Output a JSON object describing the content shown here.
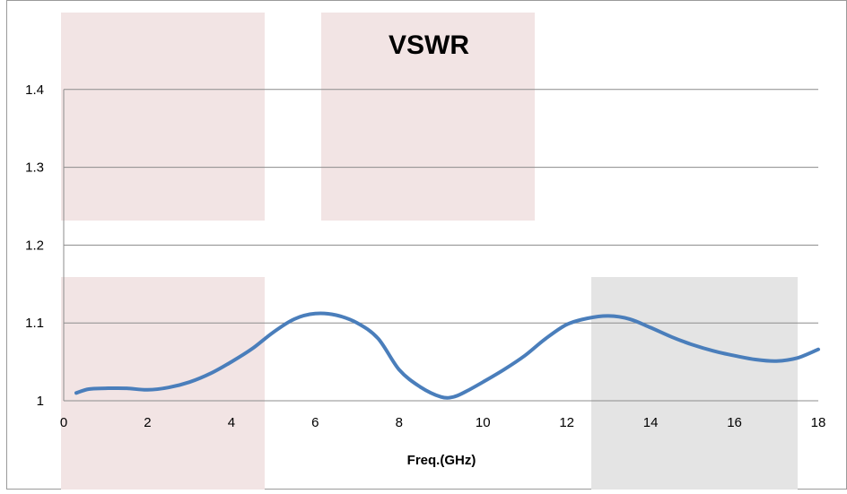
{
  "chart_data": {
    "type": "line",
    "title": "VSWR",
    "xlabel": "Freq.(GHz)",
    "ylabel": "",
    "xlim": [
      0,
      18
    ],
    "ylim": [
      1.0,
      1.5
    ],
    "x_ticks": [
      "0",
      "2",
      "4",
      "6",
      "8",
      "10",
      "12",
      "14",
      "16",
      "18"
    ],
    "y_ticks": [
      "1",
      "1.1",
      "1.2",
      "1.3",
      "1.4"
    ],
    "grid": "horizontal",
    "legend": "none",
    "series_color": "#4a7ebb",
    "shade_color": "#f2e4e4",
    "shade_gray_color": "#e4e4e4",
    "series": [
      {
        "x": [
          0.3,
          0.6,
          1.0,
          1.5,
          2.0,
          2.5,
          3.0,
          3.5,
          4.0,
          4.5,
          5.0,
          5.5,
          6.0,
          6.5,
          7.0,
          7.5,
          8.0,
          8.5,
          9.0,
          9.3,
          9.6,
          10.0,
          10.5,
          11.0,
          11.5,
          12.0,
          12.5,
          13.0,
          13.5,
          14.0,
          14.5,
          15.0,
          15.5,
          16.0,
          16.5,
          17.0,
          17.5,
          18.0
        ],
        "y": [
          1.01,
          1.015,
          1.016,
          1.016,
          1.014,
          1.017,
          1.024,
          1.035,
          1.05,
          1.067,
          1.088,
          1.105,
          1.112,
          1.11,
          1.1,
          1.08,
          1.04,
          1.018,
          1.005,
          1.005,
          1.012,
          1.024,
          1.04,
          1.058,
          1.08,
          1.098,
          1.106,
          1.109,
          1.105,
          1.094,
          1.082,
          1.072,
          1.064,
          1.058,
          1.053,
          1.051,
          1.055,
          1.066
        ]
      }
    ]
  }
}
